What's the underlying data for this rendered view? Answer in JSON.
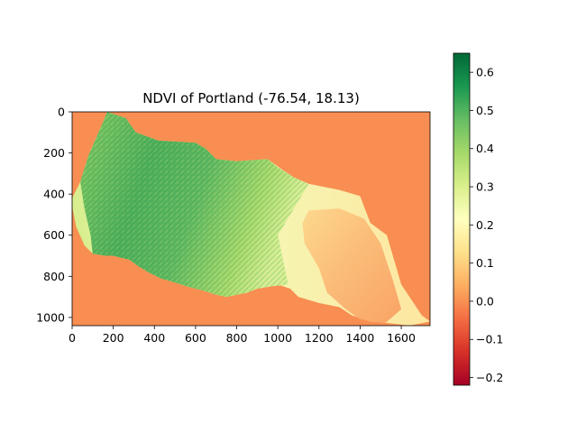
{
  "chart_data": {
    "type": "heatmap",
    "title": "NDVI of Portland  (-76.54, 18.13)",
    "xlabel": "",
    "ylabel": "",
    "xlim": [
      0,
      1740
    ],
    "ylim": [
      1040,
      0
    ],
    "x_ticks": [
      0,
      200,
      400,
      600,
      800,
      1000,
      1200,
      1400,
      1600
    ],
    "y_ticks": [
      0,
      200,
      400,
      600,
      800,
      1000
    ],
    "colorbar": {
      "colormap": "RdYlGn",
      "min": -0.22,
      "max": 0.65,
      "ticks": [
        -0.2,
        -0.1,
        0.0,
        0.1,
        0.2,
        0.3,
        0.4,
        0.5,
        0.6
      ],
      "tick_labels": [
        "−0.2",
        "−0.1",
        "0.0",
        "0.1",
        "0.2",
        "0.3",
        "0.4",
        "0.5",
        "0.6"
      ]
    },
    "background_value": 0.0,
    "region_outline": [
      [
        170,
        0
      ],
      [
        260,
        30
      ],
      [
        310,
        100
      ],
      [
        420,
        140
      ],
      [
        600,
        150
      ],
      [
        650,
        180
      ],
      [
        700,
        230
      ],
      [
        800,
        240
      ],
      [
        950,
        230
      ],
      [
        1020,
        280
      ],
      [
        1080,
        320
      ],
      [
        1150,
        350
      ],
      [
        1300,
        380
      ],
      [
        1400,
        410
      ],
      [
        1450,
        540
      ],
      [
        1530,
        600
      ],
      [
        1600,
        840
      ],
      [
        1700,
        990
      ],
      [
        1740,
        1020
      ],
      [
        1640,
        1040
      ],
      [
        1560,
        1030
      ],
      [
        1450,
        1020
      ],
      [
        1360,
        990
      ],
      [
        1300,
        950
      ],
      [
        1200,
        930
      ],
      [
        1100,
        900
      ],
      [
        1060,
        860
      ],
      [
        1000,
        840
      ],
      [
        960,
        850
      ],
      [
        900,
        860
      ],
      [
        850,
        880
      ],
      [
        750,
        900
      ],
      [
        700,
        890
      ],
      [
        640,
        870
      ],
      [
        600,
        860
      ],
      [
        560,
        850
      ],
      [
        500,
        830
      ],
      [
        430,
        810
      ],
      [
        370,
        780
      ],
      [
        320,
        750
      ],
      [
        280,
        720
      ],
      [
        200,
        700
      ],
      [
        160,
        700
      ],
      [
        100,
        690
      ],
      [
        60,
        650
      ],
      [
        20,
        560
      ],
      [
        0,
        460
      ],
      [
        0,
        420
      ],
      [
        40,
        340
      ],
      [
        80,
        210
      ],
      [
        120,
        120
      ],
      [
        150,
        50
      ]
    ],
    "dense_vegetation_region": [
      [
        170,
        0
      ],
      [
        260,
        30
      ],
      [
        310,
        100
      ],
      [
        420,
        140
      ],
      [
        600,
        150
      ],
      [
        650,
        180
      ],
      [
        700,
        230
      ],
      [
        800,
        240
      ],
      [
        950,
        230
      ],
      [
        1000,
        270
      ],
      [
        1080,
        320
      ],
      [
        1150,
        350
      ],
      [
        1000,
        600
      ],
      [
        1050,
        840
      ],
      [
        960,
        850
      ],
      [
        900,
        860
      ],
      [
        850,
        880
      ],
      [
        750,
        900
      ],
      [
        700,
        890
      ],
      [
        640,
        870
      ],
      [
        560,
        850
      ],
      [
        500,
        830
      ],
      [
        430,
        810
      ],
      [
        370,
        780
      ],
      [
        320,
        750
      ],
      [
        280,
        720
      ],
      [
        200,
        700
      ],
      [
        160,
        700
      ],
      [
        100,
        690
      ],
      [
        90,
        600
      ],
      [
        60,
        470
      ],
      [
        40,
        340
      ],
      [
        80,
        210
      ],
      [
        120,
        120
      ],
      [
        150,
        50
      ]
    ],
    "sparse_vegetation_region": [
      [
        1150,
        480
      ],
      [
        1300,
        470
      ],
      [
        1420,
        520
      ],
      [
        1500,
        640
      ],
      [
        1560,
        820
      ],
      [
        1600,
        960
      ],
      [
        1520,
        1030
      ],
      [
        1400,
        1010
      ],
      [
        1330,
        960
      ],
      [
        1240,
        880
      ],
      [
        1200,
        760
      ],
      [
        1130,
        640
      ],
      [
        1120,
        540
      ]
    ]
  }
}
